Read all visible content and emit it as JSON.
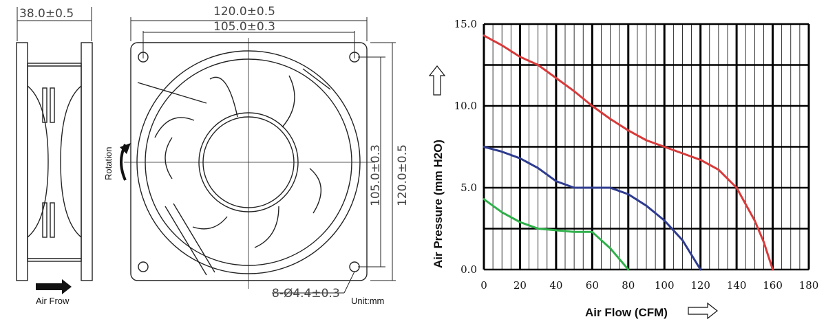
{
  "drawing": {
    "side_width_dim": "38.0±0.5",
    "outer_width_dim": "120.0±0.5",
    "hole_spacing_dim": "105.0±0.3",
    "hole_spacing_vertical_dim": "105.0±0.3",
    "outer_height_dim": "120.0±0.5",
    "hole_dim": "8-Ø4.4±0.3",
    "unit_label": "Unit:mm",
    "rotation_label": "Rotation",
    "air_flow_label": "Air Frow"
  },
  "chart_data": {
    "type": "line",
    "title": "",
    "xlabel": "Air Flow (CFM)",
    "ylabel": "Air Pressure (mm H2O)",
    "xlim": [
      0,
      180
    ],
    "ylim": [
      0,
      15
    ],
    "x_ticks": [
      "0",
      "20",
      "40",
      "60",
      "80",
      "100",
      "120",
      "140",
      "160",
      "180"
    ],
    "y_ticks": [
      "0.0",
      "5.0",
      "10.0",
      "15.0"
    ],
    "grid": true,
    "series": [
      {
        "color": "#d83a3a",
        "points": [
          [
            0,
            14.3
          ],
          [
            10,
            13.7
          ],
          [
            20,
            13.0
          ],
          [
            30,
            12.5
          ],
          [
            40,
            11.7
          ],
          [
            50,
            10.9
          ],
          [
            60,
            10.0
          ],
          [
            70,
            9.2
          ],
          [
            80,
            8.5
          ],
          [
            90,
            7.9
          ],
          [
            100,
            7.5
          ],
          [
            110,
            7.1
          ],
          [
            120,
            6.7
          ],
          [
            130,
            6.1
          ],
          [
            140,
            5.0
          ],
          [
            150,
            3.0
          ],
          [
            155,
            1.7
          ],
          [
            160,
            0.0
          ]
        ]
      },
      {
        "color": "#2e3b8e",
        "points": [
          [
            0,
            7.5
          ],
          [
            10,
            7.2
          ],
          [
            20,
            6.8
          ],
          [
            30,
            6.2
          ],
          [
            40,
            5.4
          ],
          [
            50,
            5.0
          ],
          [
            60,
            5.0
          ],
          [
            70,
            5.0
          ],
          [
            80,
            4.6
          ],
          [
            90,
            3.9
          ],
          [
            100,
            3.0
          ],
          [
            110,
            1.8
          ],
          [
            120,
            0.0
          ]
        ]
      },
      {
        "color": "#2fb04a",
        "points": [
          [
            0,
            4.3
          ],
          [
            10,
            3.5
          ],
          [
            20,
            2.9
          ],
          [
            30,
            2.5
          ],
          [
            40,
            2.4
          ],
          [
            50,
            2.3
          ],
          [
            60,
            2.3
          ],
          [
            70,
            1.3
          ],
          [
            80,
            0.0
          ]
        ]
      }
    ]
  }
}
